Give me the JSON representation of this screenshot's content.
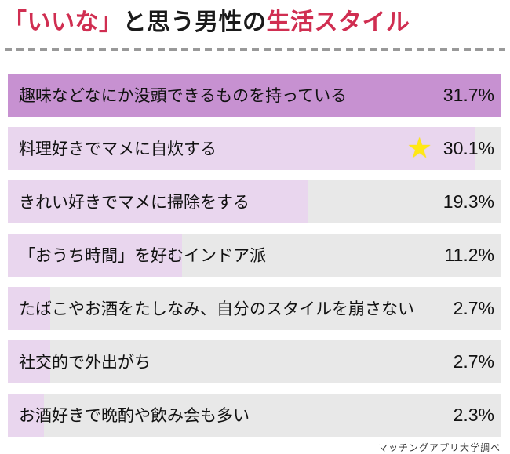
{
  "title": {
    "segment_red_1": "「いいな」",
    "segment_black": "と思う男性の",
    "segment_red_2": "生活スタイル"
  },
  "chart_data": {
    "type": "bar",
    "orientation": "horizontal",
    "title": "「いいな」と思う男性の生活スタイル",
    "categories": [
      "趣味などなにか没頭できるものを持っている",
      "料理好きでマメに自炊する",
      "きれい好きでマメに掃除をする",
      "「おうち時間」を好むインドア派",
      "たばこやお酒をたしなみ、自分のスタイルを崩さない",
      "社交的で外出がち",
      "お酒好きで晩酌や飲み会も多い"
    ],
    "values": [
      31.7,
      30.1,
      19.3,
      11.2,
      2.7,
      2.7,
      2.3
    ],
    "value_labels": [
      "31.7%",
      "30.1%",
      "19.3%",
      "11.2%",
      "2.7%",
      "2.7%",
      "2.3%"
    ],
    "xlim": [
      0,
      31.7
    ],
    "grid": false,
    "legend": false,
    "highlight": {
      "index": 1,
      "marker": "star-icon",
      "marker_glyph": "★"
    },
    "bar_colors": [
      "#c791d1",
      "#e9d6ee",
      "#e9d6ee",
      "#e9d6ee",
      "#e9d6ee",
      "#e9d6ee",
      "#e9d6ee"
    ],
    "track_color": "#e8e8e8"
  },
  "footer": {
    "source": "マッチングアプリ大学調べ"
  },
  "colors": {
    "accent_red": "#d02e51",
    "star_yellow": "#ffe815",
    "divider_gray": "#999999",
    "text_black": "#1a1a1a",
    "background": "#ffffff"
  }
}
